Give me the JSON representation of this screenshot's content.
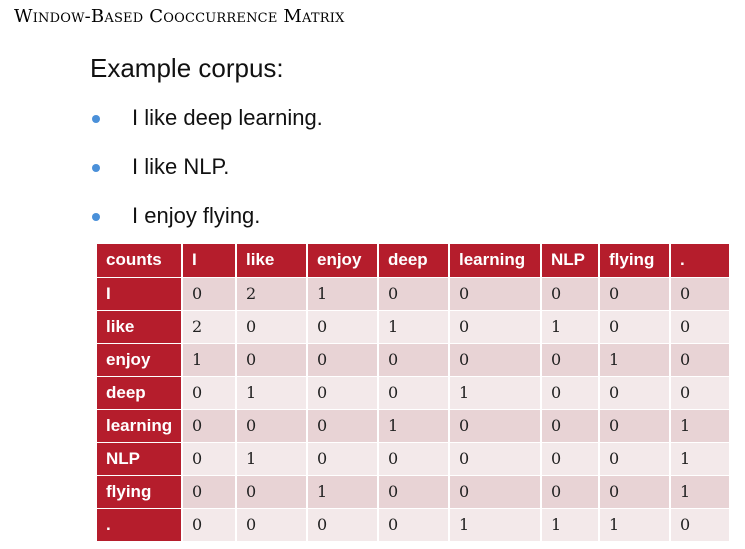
{
  "title": "Window-Based Cooccurrence Matrix",
  "corpus": {
    "heading": "Example corpus:",
    "sentences": [
      "I like deep learning.",
      "I like NLP.",
      "I enjoy flying."
    ],
    "bullet_color": "#4a90d9"
  },
  "matrix": {
    "header_color": "#b51d2c",
    "columns": [
      "counts",
      "I",
      "like",
      "enjoy",
      "deep",
      "learning",
      "NLP",
      "flying",
      "."
    ],
    "rows": [
      {
        "label": "I",
        "values": [
          "0",
          "2",
          "1",
          "0",
          "0",
          "0",
          "0",
          "0"
        ]
      },
      {
        "label": "like",
        "values": [
          "2",
          "0",
          "0",
          "1",
          "0",
          "1",
          "0",
          "0"
        ]
      },
      {
        "label": "enjoy",
        "values": [
          "1",
          "0",
          "0",
          "0",
          "0",
          "0",
          "1",
          "0"
        ]
      },
      {
        "label": "deep",
        "values": [
          "0",
          "1",
          "0",
          "0",
          "1",
          "0",
          "0",
          "0"
        ]
      },
      {
        "label": "learning",
        "values": [
          "0",
          "0",
          "0",
          "1",
          "0",
          "0",
          "0",
          "1"
        ]
      },
      {
        "label": "NLP",
        "values": [
          "0",
          "1",
          "0",
          "0",
          "0",
          "0",
          "0",
          "1"
        ]
      },
      {
        "label": "flying",
        "values": [
          "0",
          "0",
          "1",
          "0",
          "0",
          "0",
          "0",
          "1"
        ]
      },
      {
        "label": ".",
        "values": [
          "0",
          "0",
          "0",
          "0",
          "1",
          "1",
          "1",
          "0"
        ]
      }
    ]
  }
}
